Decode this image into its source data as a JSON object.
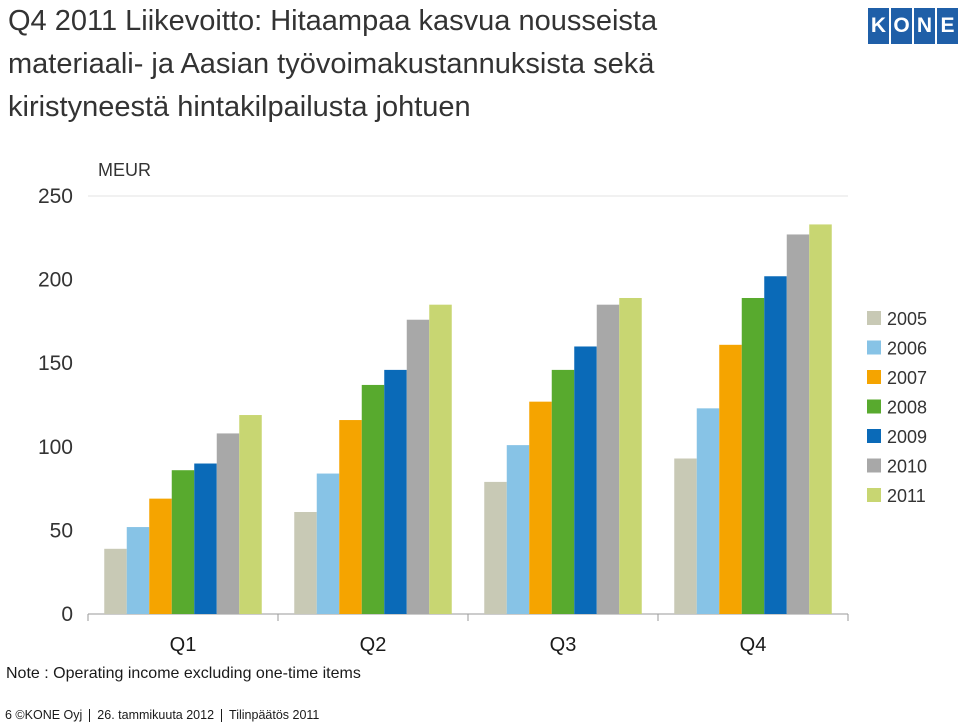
{
  "slide": {
    "title_lines": [
      "Q4 2011 Liikevoitto: Hitaampaa kasvua nousseista",
      "materiaali- ja Aasian työvoimakustannuksista sekä",
      "kiristyneestä hintakilpailusta johtuen"
    ],
    "logo_letters": [
      "K",
      "O",
      "N",
      "E"
    ],
    "note": "Note : Operating income excluding one-time items",
    "footer": {
      "page": "6 ©KONE Oyj",
      "date": "26. tammikuuta 2012",
      "doc": "Tilinpäätös 2011"
    }
  },
  "chart_data": {
    "type": "bar",
    "unit_label": "MEUR",
    "categories": [
      "Q1",
      "Q2",
      "Q3",
      "Q4"
    ],
    "ylim": [
      0,
      250
    ],
    "yticks": [
      0,
      50,
      100,
      150,
      200,
      250
    ],
    "grid": false,
    "legend_position": "right",
    "series": [
      {
        "name": "2005",
        "color": "#c8c9b5",
        "values": [
          39,
          61,
          79,
          93
        ]
      },
      {
        "name": "2006",
        "color": "#87c3e6",
        "values": [
          52,
          84,
          101,
          123
        ]
      },
      {
        "name": "2007",
        "color": "#f5a400",
        "values": [
          69,
          116,
          127,
          161
        ]
      },
      {
        "name": "2008",
        "color": "#58aa2e",
        "values": [
          86,
          137,
          146,
          189
        ]
      },
      {
        "name": "2009",
        "color": "#0a6ab8",
        "values": [
          90,
          146,
          160,
          202
        ]
      },
      {
        "name": "2010",
        "color": "#a8a8a8",
        "values": [
          108,
          176,
          185,
          227
        ]
      },
      {
        "name": "2011",
        "color": "#c8d672",
        "values": [
          119,
          185,
          189,
          233
        ]
      }
    ]
  }
}
